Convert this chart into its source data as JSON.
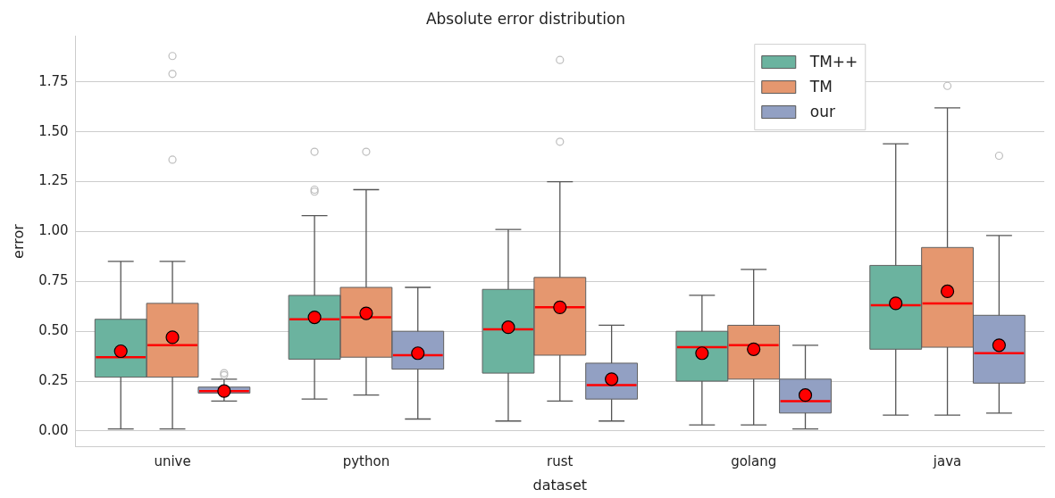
{
  "chart_data": {
    "type": "box",
    "title": "Absolute error distribution",
    "xlabel": "dataset",
    "ylabel": "error",
    "categories": [
      "unive",
      "python",
      "rust",
      "golang",
      "java"
    ],
    "ylim": [
      -0.08,
      1.98
    ],
    "yticks": [
      {
        "value": 0,
        "label": "0.00"
      },
      {
        "value": 0.25,
        "label": "0.25"
      },
      {
        "value": 0.5,
        "label": "0.50"
      },
      {
        "value": 0.75,
        "label": "0.75"
      },
      {
        "value": 1,
        "label": "1.00"
      },
      {
        "value": 1.25,
        "label": "1.25"
      },
      {
        "value": 1.5,
        "label": "1.50"
      },
      {
        "value": 1.75,
        "label": "1.75"
      }
    ],
    "grid": "y",
    "legend": "top right",
    "series": [
      {
        "name": "TM++",
        "color": "#6bb39f",
        "boxes": [
          {
            "low": 0.01,
            "q1": 0.27,
            "median": 0.37,
            "q3": 0.56,
            "high": 0.85,
            "mean": 0.4
          },
          {
            "low": 0.16,
            "q1": 0.36,
            "median": 0.56,
            "q3": 0.68,
            "high": 1.08,
            "mean": 0.57,
            "outliers": [
              1.2,
              1.21,
              1.4
            ]
          },
          {
            "low": 0.05,
            "q1": 0.29,
            "median": 0.51,
            "q3": 0.71,
            "high": 1.01,
            "mean": 0.52
          },
          {
            "low": 0.03,
            "q1": 0.25,
            "median": 0.42,
            "q3": 0.5,
            "high": 0.68,
            "mean": 0.39
          },
          {
            "low": 0.08,
            "q1": 0.41,
            "median": 0.63,
            "q3": 0.83,
            "high": 1.44,
            "mean": 0.64
          }
        ]
      },
      {
        "name": "TM",
        "color": "#e5976f",
        "boxes": [
          {
            "low": 0.01,
            "q1": 0.27,
            "median": 0.43,
            "q3": 0.64,
            "high": 0.85,
            "mean": 0.47,
            "outliers": [
              1.36,
              1.79,
              1.88
            ]
          },
          {
            "low": 0.18,
            "q1": 0.37,
            "median": 0.57,
            "q3": 0.72,
            "high": 1.21,
            "mean": 0.59,
            "outliers": [
              1.4
            ]
          },
          {
            "low": 0.15,
            "q1": 0.38,
            "median": 0.62,
            "q3": 0.77,
            "high": 1.25,
            "mean": 0.62,
            "outliers": [
              1.45,
              1.86
            ]
          },
          {
            "low": 0.03,
            "q1": 0.26,
            "median": 0.43,
            "q3": 0.53,
            "high": 0.81,
            "mean": 0.41
          },
          {
            "low": 0.08,
            "q1": 0.42,
            "median": 0.64,
            "q3": 0.92,
            "high": 1.62,
            "mean": 0.7,
            "outliers": [
              1.73
            ]
          }
        ]
      },
      {
        "name": "our",
        "color": "#92a0c3",
        "boxes": [
          {
            "low": 0.15,
            "q1": 0.19,
            "median": 0.2,
            "q3": 0.22,
            "high": 0.26,
            "mean": 0.2,
            "outliers": [
              0.28,
              0.29
            ]
          },
          {
            "low": 0.06,
            "q1": 0.31,
            "median": 0.38,
            "q3": 0.5,
            "high": 0.72,
            "mean": 0.39
          },
          {
            "low": 0.05,
            "q1": 0.16,
            "median": 0.23,
            "q3": 0.34,
            "high": 0.53,
            "mean": 0.26
          },
          {
            "low": 0.01,
            "q1": 0.09,
            "median": 0.15,
            "q3": 0.26,
            "high": 0.43,
            "mean": 0.18
          },
          {
            "low": 0.09,
            "q1": 0.24,
            "median": 0.39,
            "q3": 0.58,
            "high": 0.98,
            "mean": 0.43,
            "outliers": [
              1.38
            ]
          }
        ]
      }
    ]
  }
}
